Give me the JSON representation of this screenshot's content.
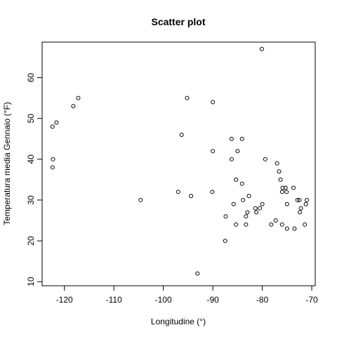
{
  "chart_data": {
    "type": "scatter",
    "title": "Scatter plot",
    "xlabel": "Longitudine (°)",
    "ylabel": "Temperatura media Gennaio (°F)",
    "xlim": [
      -124.5,
      -69.3
    ],
    "ylim": [
      9.0,
      68.7
    ],
    "x_ticks": [
      -120,
      -110,
      -100,
      -90,
      -80,
      -70
    ],
    "x_tick_labels": [
      "-120",
      "-110",
      "-100",
      "-90",
      "-80",
      "-70"
    ],
    "y_ticks": [
      10,
      20,
      30,
      40,
      50,
      60
    ],
    "y_tick_labels": [
      "10",
      "20",
      "30",
      "40",
      "50",
      "60"
    ],
    "grid": false,
    "marker": "open-circle",
    "points": [
      {
        "x": -122.4,
        "y": 48
      },
      {
        "x": -121.6,
        "y": 49
      },
      {
        "x": -118.2,
        "y": 53
      },
      {
        "x": -117.2,
        "y": 55
      },
      {
        "x": -122.3,
        "y": 40
      },
      {
        "x": -122.4,
        "y": 38
      },
      {
        "x": -104.6,
        "y": 30
      },
      {
        "x": -97.0,
        "y": 32
      },
      {
        "x": -96.3,
        "y": 46
      },
      {
        "x": -95.2,
        "y": 55
      },
      {
        "x": -94.4,
        "y": 31
      },
      {
        "x": -93.1,
        "y": 12
      },
      {
        "x": -90.0,
        "y": 54
      },
      {
        "x": -90.0,
        "y": 42
      },
      {
        "x": -90.1,
        "y": 32
      },
      {
        "x": -80.1,
        "y": 67
      },
      {
        "x": -86.2,
        "y": 45
      },
      {
        "x": -84.1,
        "y": 45
      },
      {
        "x": -85.0,
        "y": 42
      },
      {
        "x": -86.2,
        "y": 40
      },
      {
        "x": -79.4,
        "y": 40
      },
      {
        "x": -77.0,
        "y": 39
      },
      {
        "x": -76.6,
        "y": 37
      },
      {
        "x": -85.3,
        "y": 35
      },
      {
        "x": -84.1,
        "y": 34
      },
      {
        "x": -76.3,
        "y": 35
      },
      {
        "x": -75.9,
        "y": 33
      },
      {
        "x": -75.3,
        "y": 33
      },
      {
        "x": -73.7,
        "y": 33
      },
      {
        "x": -76.0,
        "y": 32
      },
      {
        "x": -75.1,
        "y": 32
      },
      {
        "x": -82.7,
        "y": 31
      },
      {
        "x": -83.9,
        "y": 30
      },
      {
        "x": -72.9,
        "y": 30
      },
      {
        "x": -72.5,
        "y": 30
      },
      {
        "x": -71.0,
        "y": 30
      },
      {
        "x": -71.2,
        "y": 29
      },
      {
        "x": -85.8,
        "y": 29
      },
      {
        "x": -80.0,
        "y": 29
      },
      {
        "x": -75.0,
        "y": 29
      },
      {
        "x": -80.5,
        "y": 28
      },
      {
        "x": -81.4,
        "y": 28
      },
      {
        "x": -72.2,
        "y": 28
      },
      {
        "x": -83.0,
        "y": 27
      },
      {
        "x": -81.2,
        "y": 27
      },
      {
        "x": -72.4,
        "y": 27
      },
      {
        "x": -87.4,
        "y": 26
      },
      {
        "x": -83.3,
        "y": 26
      },
      {
        "x": -77.3,
        "y": 25
      },
      {
        "x": -85.3,
        "y": 24
      },
      {
        "x": -83.3,
        "y": 24
      },
      {
        "x": -78.2,
        "y": 24
      },
      {
        "x": -76.0,
        "y": 24
      },
      {
        "x": -71.4,
        "y": 24
      },
      {
        "x": -75.0,
        "y": 23
      },
      {
        "x": -73.5,
        "y": 23
      },
      {
        "x": -87.5,
        "y": 20
      }
    ]
  }
}
